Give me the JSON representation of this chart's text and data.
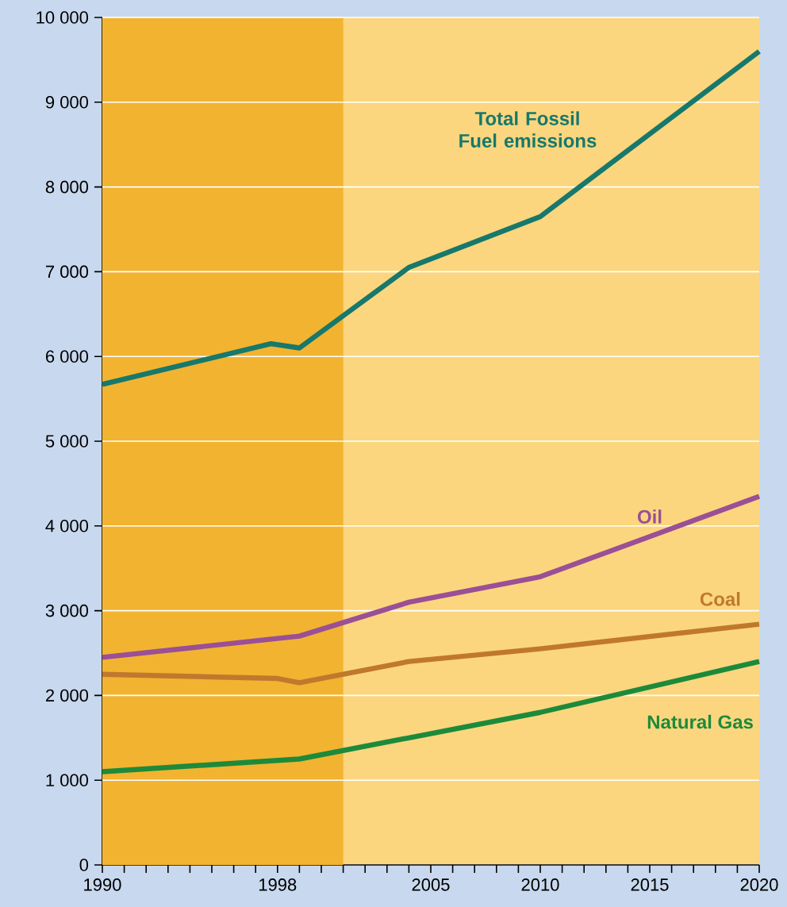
{
  "chart_data": {
    "type": "line",
    "xlim": [
      1990,
      2020
    ],
    "ylim": [
      0,
      10000
    ],
    "xticks": [
      1990,
      {
        "value": 1991,
        "label": null
      },
      {
        "value": 1992,
        "label": null
      },
      {
        "value": 1993,
        "label": null
      },
      {
        "value": 1994,
        "label": null
      },
      {
        "value": 1995,
        "label": null
      },
      {
        "value": 1996,
        "label": null
      },
      {
        "value": 1997,
        "label": null
      },
      1998,
      {
        "value": 1999,
        "label": null
      },
      {
        "value": 2000,
        "label": null
      },
      {
        "value": 2001,
        "label": null
      },
      {
        "value": 2002,
        "label": null
      },
      {
        "value": 2003,
        "label": null
      },
      {
        "value": 2004,
        "label": null
      },
      2005,
      {
        "value": 2006,
        "label": null
      },
      {
        "value": 2007,
        "label": null
      },
      {
        "value": 2008,
        "label": null
      },
      {
        "value": 2009,
        "label": null
      },
      2010,
      {
        "value": 2011,
        "label": null
      },
      {
        "value": 2012,
        "label": null
      },
      {
        "value": 2013,
        "label": null
      },
      {
        "value": 2014,
        "label": null
      },
      2015,
      {
        "value": 2016,
        "label": null
      },
      {
        "value": 2017,
        "label": null
      },
      {
        "value": 2018,
        "label": null
      },
      {
        "value": 2019,
        "label": null
      },
      2020
    ],
    "yticks": [
      0,
      {
        "value": 1000,
        "label": "1 000"
      },
      {
        "value": 2000,
        "label": "2 000"
      },
      {
        "value": 3000,
        "label": "3 000"
      },
      {
        "value": 4000,
        "label": "4 000"
      },
      {
        "value": 5000,
        "label": "5 000"
      },
      {
        "value": 6000,
        "label": "6 000"
      },
      {
        "value": 7000,
        "label": "7 000"
      },
      {
        "value": 8000,
        "label": "8 000"
      },
      {
        "value": 9000,
        "label": "9 000"
      },
      {
        "value": 10000,
        "label": "10 000"
      }
    ],
    "grid": "y",
    "marker": "none",
    "line_style": "solid",
    "bands": [
      {
        "axis": "x",
        "from": 1990,
        "to": 2001,
        "color": "#f2b330"
      }
    ],
    "series": [
      {
        "name": "Total Fossil Fuel emissions",
        "color": "#17786c",
        "x": [
          1990,
          1997.7,
          1999,
          2004,
          2010,
          2020
        ],
        "values": [
          5670,
          6150,
          6100,
          7050,
          7650,
          9600
        ]
      },
      {
        "name": "Oil",
        "color": "#9a4f96",
        "x": [
          1990,
          1999,
          2004,
          2010,
          2020
        ],
        "values": [
          2450,
          2700,
          3100,
          3400,
          4350
        ]
      },
      {
        "name": "Coal",
        "color": "#c0782e",
        "x": [
          1990,
          1998,
          1999,
          2004,
          2010,
          2020
        ],
        "values": [
          2250,
          2200,
          2150,
          2400,
          2550,
          2840
        ]
      },
      {
        "name": "Natural Gas",
        "color": "#1d8a3b",
        "x": [
          1990,
          1999,
          2004,
          2010,
          2020
        ],
        "values": [
          1100,
          1250,
          1500,
          1800,
          2400
        ]
      }
    ]
  }
}
